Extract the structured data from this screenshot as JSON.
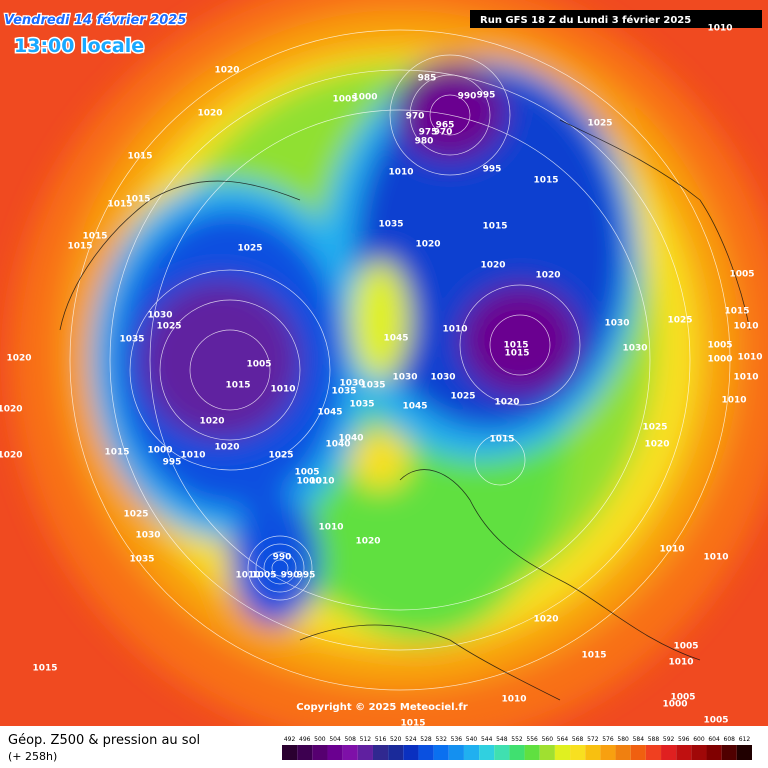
{
  "header": {
    "date": "Vendredi 14 février 2025",
    "time": "13:00 locale",
    "run": "Run GFS 18 Z du Lundi 3 février 2025"
  },
  "footer": {
    "title": "Géop. Z500 & pression au sol",
    "lead": "(+ 258h)",
    "copyright": "Copyright © 2025 Meteociel.fr"
  },
  "colorbar": {
    "labels": [
      492,
      496,
      500,
      504,
      508,
      512,
      516,
      520,
      524,
      528,
      532,
      536,
      540,
      544,
      548,
      552,
      556,
      560,
      564,
      568,
      572,
      576,
      580,
      584,
      588,
      592,
      596,
      600,
      604,
      608,
      612
    ],
    "colors": [
      "#2a0030",
      "#3d0050",
      "#560070",
      "#6a0090",
      "#7e10a8",
      "#6020a0",
      "#302890",
      "#1a2a9a",
      "#0a30c0",
      "#0a50e0",
      "#0a70f0",
      "#1490f0",
      "#20b0f0",
      "#30d0e0",
      "#40e0b0",
      "#40e070",
      "#60e040",
      "#a0e030",
      "#e0f020",
      "#f8e020",
      "#f8c010",
      "#f8a010",
      "#f08010",
      "#f06010",
      "#f04020",
      "#e02020",
      "#c01010",
      "#a00808",
      "#800000",
      "#500000",
      "#200000"
    ]
  },
  "isobar_labels": [
    "1020",
    "1020",
    "1015",
    "1015",
    "1015",
    "1015",
    "1015",
    "1005",
    "1000",
    "985",
    "990",
    "995",
    "970",
    "965",
    "975",
    "970",
    "980",
    "995",
    "1010",
    "1015",
    "1025",
    "1035",
    "1015",
    "1020",
    "1025",
    "1020",
    "1020",
    "1005",
    "1030",
    "1025",
    "1035",
    "1010",
    "1015",
    "1015",
    "1030",
    "1030",
    "1025",
    "1015",
    "1010",
    "1005",
    "1010",
    "1000",
    "1010",
    "1005",
    "1045",
    "1030",
    "1030",
    "1035",
    "1035",
    "1030",
    "1015",
    "1010",
    "1020",
    "1025",
    "1020",
    "1010",
    "1035",
    "1045",
    "1045",
    "1020",
    "1025",
    "1020",
    "1040",
    "1040",
    "1015",
    "1020",
    "1020",
    "1015",
    "1000",
    "995",
    "1010",
    "1020",
    "1025",
    "1005",
    "1000",
    "1010",
    "1025",
    "1030",
    "1010",
    "1020",
    "1035",
    "1010",
    "1010",
    "990",
    "1010",
    "1005",
    "990",
    "995",
    "1020",
    "1015",
    "1015",
    "1010",
    "1005",
    "1005",
    "1000",
    "1005",
    "1010",
    "1015",
    "1010"
  ]
}
